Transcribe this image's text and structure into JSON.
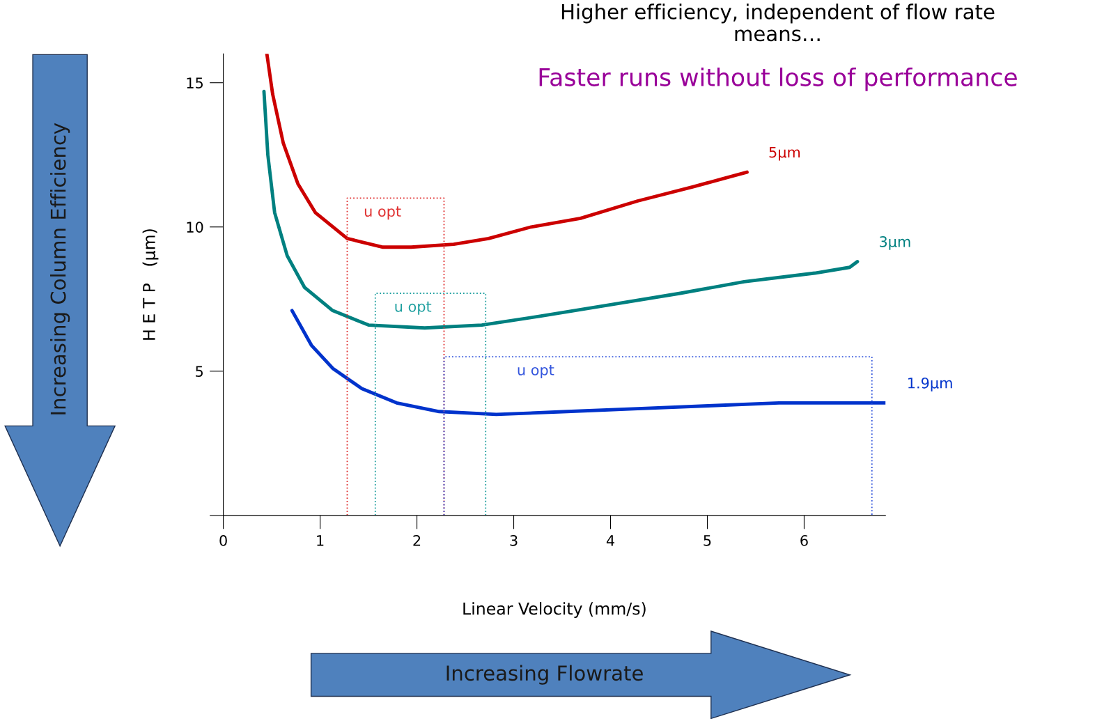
{
  "chart_data": {
    "type": "line",
    "title": "Higher efficiency, independent of flow rate\nmeans…",
    "subtitle": "Faster runs without loss of performance",
    "xlabel": "Linear Velocity (mm/s)",
    "ylabel": "H E T P   (μm)",
    "xlim": [
      0,
      6.84
    ],
    "ylim": [
      0,
      16
    ],
    "xticks": [
      0,
      1,
      2,
      3,
      4,
      5,
      6
    ],
    "yticks": [
      {
        "value": 0,
        "label": null
      },
      5,
      10,
      15
    ],
    "legend": false,
    "grid": false,
    "series": [
      {
        "name": "5μm",
        "color": "#cc0000",
        "x": [
          0.45,
          0.51,
          0.62,
          0.77,
          0.95,
          1.28,
          1.65,
          1.94,
          2.38,
          2.74,
          3.18,
          3.69,
          4.28,
          4.86,
          5.41
        ],
        "values": [
          16.0,
          14.6,
          12.9,
          11.5,
          10.5,
          9.6,
          9.3,
          9.3,
          9.4,
          9.6,
          10.0,
          10.3,
          10.9,
          11.4,
          11.9
        ]
      },
      {
        "name": "3μm",
        "color": "#008080",
        "x": [
          0.42,
          0.46,
          0.53,
          0.66,
          0.84,
          1.13,
          1.5,
          2.08,
          2.67,
          3.26,
          3.99,
          4.72,
          5.38,
          6.11,
          6.47,
          6.55
        ],
        "values": [
          14.7,
          12.5,
          10.5,
          9.0,
          7.9,
          7.1,
          6.6,
          6.5,
          6.6,
          6.9,
          7.3,
          7.7,
          8.1,
          8.4,
          8.6,
          8.8
        ]
      },
      {
        "name": "1.9μm",
        "color": "#0033cc",
        "x": [
          0.71,
          0.91,
          1.13,
          1.43,
          1.79,
          2.23,
          2.82,
          3.55,
          4.28,
          5.01,
          5.74,
          6.47,
          6.84
        ],
        "values": [
          7.1,
          5.9,
          5.1,
          4.4,
          3.9,
          3.6,
          3.5,
          3.6,
          3.7,
          3.8,
          3.9,
          3.9,
          3.9
        ]
      },
      {
        "color": "#e03030",
        "line_style": "dotted",
        "x": [
          1.28,
          1.28,
          2.28,
          2.28
        ],
        "values": [
          0,
          11.0,
          11.0,
          0
        ]
      },
      {
        "color": "#20a0a0",
        "line_style": "dotted",
        "x": [
          1.57,
          1.57,
          2.71,
          2.71
        ],
        "values": [
          0,
          7.7,
          7.7,
          0
        ]
      },
      {
        "color": "#3355dd",
        "line_style": "dotted",
        "x": [
          2.28,
          2.28,
          6.7,
          6.7
        ],
        "values": [
          0,
          5.5,
          5.5,
          0
        ]
      }
    ],
    "annotations": [
      "Increasing Column Efficiency",
      "Increasing Flowrate",
      "u opt",
      "u opt",
      "u opt"
    ]
  }
}
